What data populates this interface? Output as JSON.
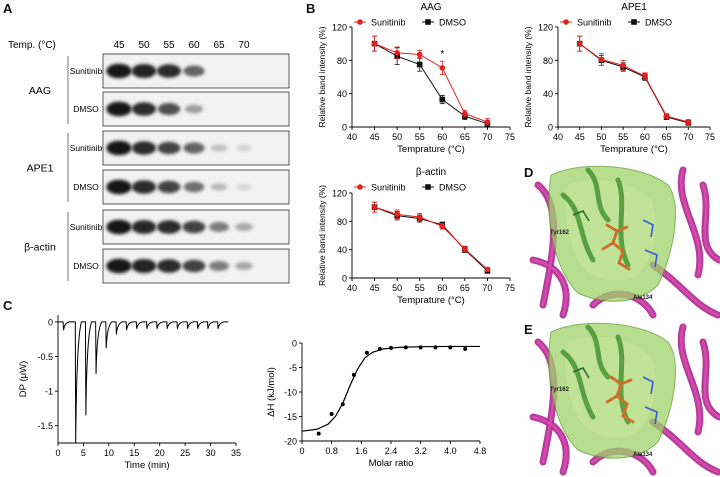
{
  "panels": {
    "A": "A",
    "B": "B",
    "C": "C",
    "D": "D",
    "E": "E"
  },
  "blot": {
    "temp_label": "Temp. (°C)",
    "temps": [
      "45",
      "50",
      "55",
      "60",
      "65",
      "70"
    ],
    "groups": [
      {
        "protein": "AAG",
        "rows": [
          {
            "treatment": "Sunitinib",
            "intensity": [
              0.95,
              0.9,
              0.85,
              0.6,
              0.0,
              0.0
            ]
          },
          {
            "treatment": "DMSO",
            "intensity": [
              0.95,
              0.85,
              0.7,
              0.35,
              0.0,
              0.0
            ]
          }
        ]
      },
      {
        "protein": "APE1",
        "rows": [
          {
            "treatment": "Sunitinib",
            "intensity": [
              0.95,
              0.85,
              0.75,
              0.6,
              0.2,
              0.12
            ]
          },
          {
            "treatment": "DMSO",
            "intensity": [
              0.95,
              0.85,
              0.75,
              0.55,
              0.22,
              0.1
            ]
          }
        ]
      },
      {
        "protein": "β-actin",
        "rows": [
          {
            "treatment": "Sunitinib",
            "intensity": [
              0.95,
              0.88,
              0.85,
              0.75,
              0.5,
              0.3
            ]
          },
          {
            "treatment": "DMSO",
            "intensity": [
              0.95,
              0.9,
              0.85,
              0.75,
              0.5,
              0.3
            ]
          }
        ]
      }
    ]
  },
  "chart_data": [
    {
      "type": "line",
      "title": "AAG",
      "xlabel": "Temprature (°C)",
      "ylabel": "Relative band intensity (%)",
      "xlim": [
        40,
        75
      ],
      "ylim": [
        0,
        120
      ],
      "xticks": [
        40,
        45,
        50,
        55,
        60,
        65,
        70,
        75
      ],
      "yticks": [
        0,
        40,
        80,
        120
      ],
      "legend_position": "top",
      "annotation": {
        "text": "*",
        "x": 60,
        "y": 84
      },
      "x": [
        45,
        50,
        55,
        60,
        65,
        70
      ],
      "series": [
        {
          "name": "Sunitinib",
          "color": "#e0231f",
          "marker": "circle",
          "values": [
            100,
            89,
            87,
            71,
            16,
            6
          ],
          "errors": [
            9,
            7,
            5,
            8,
            4,
            4
          ]
        },
        {
          "name": "DMSO",
          "color": "#111111",
          "marker": "square",
          "values": [
            100,
            85,
            75,
            33,
            13,
            4
          ],
          "errors": [
            9,
            10,
            8,
            5,
            4,
            3
          ]
        }
      ]
    },
    {
      "type": "line",
      "title": "APE1",
      "xlabel": "Temprature (°C)",
      "ylabel": "Relative band intensity (%)",
      "xlim": [
        40,
        75
      ],
      "ylim": [
        0,
        120
      ],
      "xticks": [
        40,
        45,
        50,
        55,
        60,
        65,
        70,
        75
      ],
      "yticks": [
        0,
        40,
        80,
        120
      ],
      "legend_position": "top",
      "x": [
        45,
        50,
        55,
        60,
        65,
        70
      ],
      "series": [
        {
          "name": "Sunitinib",
          "color": "#e0231f",
          "marker": "circle",
          "values": [
            100,
            81,
            74,
            61,
            13,
            6
          ],
          "errors": [
            9,
            7,
            6,
            4,
            3,
            3
          ]
        },
        {
          "name": "DMSO",
          "color": "#111111",
          "marker": "square",
          "values": [
            100,
            80,
            72,
            60,
            12,
            5
          ],
          "errors": [
            9,
            6,
            5,
            4,
            3,
            2
          ]
        }
      ]
    },
    {
      "type": "line",
      "title": "β-actin",
      "xlabel": "Temprature (°C)",
      "ylabel": "Relative band intensity (%)",
      "xlim": [
        40,
        75
      ],
      "ylim": [
        0,
        120
      ],
      "xticks": [
        40,
        45,
        50,
        55,
        60,
        65,
        70,
        75
      ],
      "yticks": [
        0,
        40,
        80,
        120
      ],
      "legend_position": "top",
      "x": [
        45,
        50,
        55,
        60,
        65,
        70
      ],
      "series": [
        {
          "name": "Sunitinib",
          "color": "#e0231f",
          "marker": "circle",
          "values": [
            100,
            90,
            86,
            73,
            41,
            12
          ],
          "errors": [
            7,
            6,
            5,
            4,
            4,
            3
          ]
        },
        {
          "name": "DMSO",
          "color": "#111111",
          "marker": "square",
          "values": [
            100,
            88,
            84,
            75,
            40,
            10
          ],
          "errors": [
            7,
            6,
            5,
            4,
            4,
            3
          ]
        }
      ]
    },
    {
      "type": "line",
      "title": "",
      "xlabel": "Time (min)",
      "ylabel": "DP (μW)",
      "xlim": [
        0,
        35
      ],
      "ylim": [
        -1.75,
        0.1
      ],
      "xticks": [
        0,
        5,
        10,
        15,
        20,
        25,
        30,
        35
      ],
      "yticks": [
        -1.5,
        -1,
        -0.5,
        0
      ],
      "injections": [
        {
          "t": 1.0,
          "depth": -0.12
        },
        {
          "t": 3.4,
          "depth": -1.75
        },
        {
          "t": 5.4,
          "depth": -1.35
        },
        {
          "t": 7.4,
          "depth": -0.75
        },
        {
          "t": 9.4,
          "depth": -0.38
        },
        {
          "t": 11.4,
          "depth": -0.18
        },
        {
          "t": 13.4,
          "depth": -0.12
        },
        {
          "t": 15.4,
          "depth": -0.1
        },
        {
          "t": 17.4,
          "depth": -0.1
        },
        {
          "t": 19.4,
          "depth": -0.1
        },
        {
          "t": 21.4,
          "depth": -0.1
        },
        {
          "t": 23.4,
          "depth": -0.1
        },
        {
          "t": 25.4,
          "depth": -0.1
        },
        {
          "t": 27.4,
          "depth": -0.1
        },
        {
          "t": 29.4,
          "depth": -0.1
        },
        {
          "t": 31.4,
          "depth": -0.1
        }
      ]
    },
    {
      "type": "scatter",
      "title": "",
      "xlabel": "Molar ratio",
      "ylabel": "ΔH (kJ/mol)",
      "xlim": [
        0,
        4.8
      ],
      "ylim": [
        -20,
        0
      ],
      "xticks": [
        0,
        0.8,
        1.6,
        2.4,
        3.2,
        4.0,
        4.8
      ],
      "xtick_labels": [
        "0",
        "0.8",
        "1.6",
        "2.4",
        "3.2",
        "4.0",
        "4.8"
      ],
      "yticks": [
        -20,
        -15,
        -10,
        -5,
        0
      ],
      "points": {
        "x": [
          0.45,
          0.8,
          1.1,
          1.4,
          1.75,
          2.1,
          2.4,
          2.8,
          3.2,
          3.6,
          4.0,
          4.4
        ],
        "y": [
          -18.5,
          -14.5,
          -12.5,
          -6.5,
          -2.0,
          -1.2,
          -1.0,
          -0.9,
          -0.9,
          -0.9,
          -0.9,
          -1.2
        ]
      },
      "fit": {
        "x": [
          0.0,
          0.4,
          0.7,
          0.9,
          1.1,
          1.3,
          1.5,
          1.7,
          1.9,
          2.2,
          2.6,
          3.2,
          4.0,
          4.8
        ],
        "y": [
          -18.0,
          -17.6,
          -16.6,
          -15.0,
          -12.3,
          -8.6,
          -5.3,
          -3.0,
          -1.9,
          -1.2,
          -0.9,
          -0.75,
          -0.7,
          -0.7
        ]
      }
    }
  ],
  "structures": [
    {
      "panel": "D",
      "labels": [
        "Tyr162",
        "Ala134"
      ]
    },
    {
      "panel": "E",
      "labels": [
        "Tyr162",
        "Ala134"
      ]
    }
  ]
}
